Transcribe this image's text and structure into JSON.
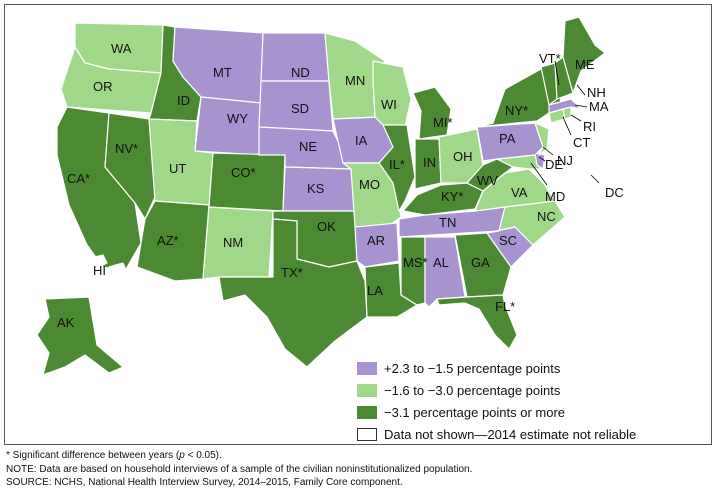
{
  "colors": {
    "purple": "#a693cf",
    "light_green": "#a0d88a",
    "dark_green": "#4b8a32",
    "border": "#ffffff",
    "blank": "#ffffff"
  },
  "states": [
    {
      "abbr": "WA",
      "label": "WA",
      "cat": "light_green"
    },
    {
      "abbr": "OR",
      "label": "OR",
      "cat": "light_green"
    },
    {
      "abbr": "CA",
      "label": "CA*",
      "cat": "dark_green"
    },
    {
      "abbr": "NV",
      "label": "NV*",
      "cat": "dark_green"
    },
    {
      "abbr": "ID",
      "label": "ID",
      "cat": "dark_green"
    },
    {
      "abbr": "MT",
      "label": "MT",
      "cat": "purple"
    },
    {
      "abbr": "WY",
      "label": "WY",
      "cat": "purple"
    },
    {
      "abbr": "UT",
      "label": "UT",
      "cat": "light_green"
    },
    {
      "abbr": "AZ",
      "label": "AZ*",
      "cat": "dark_green"
    },
    {
      "abbr": "CO",
      "label": "CO*",
      "cat": "dark_green"
    },
    {
      "abbr": "NM",
      "label": "NM",
      "cat": "light_green"
    },
    {
      "abbr": "ND",
      "label": "ND",
      "cat": "purple"
    },
    {
      "abbr": "SD",
      "label": "SD",
      "cat": "purple"
    },
    {
      "abbr": "NE",
      "label": "NE",
      "cat": "purple"
    },
    {
      "abbr": "KS",
      "label": "KS",
      "cat": "purple"
    },
    {
      "abbr": "OK",
      "label": "OK",
      "cat": "dark_green"
    },
    {
      "abbr": "TX",
      "label": "TX*",
      "cat": "dark_green"
    },
    {
      "abbr": "MN",
      "label": "MN",
      "cat": "light_green"
    },
    {
      "abbr": "IA",
      "label": "IA",
      "cat": "purple"
    },
    {
      "abbr": "MO",
      "label": "MO",
      "cat": "light_green"
    },
    {
      "abbr": "AR",
      "label": "AR",
      "cat": "purple"
    },
    {
      "abbr": "LA",
      "label": "LA",
      "cat": "dark_green"
    },
    {
      "abbr": "WI",
      "label": "WI",
      "cat": "light_green"
    },
    {
      "abbr": "IL",
      "label": "IL*",
      "cat": "dark_green"
    },
    {
      "abbr": "MI",
      "label": "MI*",
      "cat": "dark_green"
    },
    {
      "abbr": "IN",
      "label": "IN",
      "cat": "dark_green"
    },
    {
      "abbr": "OH",
      "label": "OH",
      "cat": "light_green"
    },
    {
      "abbr": "KY",
      "label": "KY*",
      "cat": "dark_green"
    },
    {
      "abbr": "TN",
      "label": "TN",
      "cat": "purple"
    },
    {
      "abbr": "MS",
      "label": "MS*",
      "cat": "dark_green"
    },
    {
      "abbr": "AL",
      "label": "AL",
      "cat": "purple"
    },
    {
      "abbr": "GA",
      "label": "GA",
      "cat": "dark_green"
    },
    {
      "abbr": "FL",
      "label": "FL*",
      "cat": "dark_green"
    },
    {
      "abbr": "SC",
      "label": "SC",
      "cat": "purple"
    },
    {
      "abbr": "NC",
      "label": "NC",
      "cat": "light_green"
    },
    {
      "abbr": "VA",
      "label": "VA",
      "cat": "light_green"
    },
    {
      "abbr": "WV",
      "label": "WV",
      "cat": "dark_green"
    },
    {
      "abbr": "MD",
      "label": "MD",
      "cat": "light_green"
    },
    {
      "abbr": "DE",
      "label": "DE",
      "cat": "purple"
    },
    {
      "abbr": "DC",
      "label": "DC",
      "cat": "blank"
    },
    {
      "abbr": "PA",
      "label": "PA",
      "cat": "purple"
    },
    {
      "abbr": "NJ",
      "label": "NJ",
      "cat": "light_green"
    },
    {
      "abbr": "NY",
      "label": "NY*",
      "cat": "dark_green"
    },
    {
      "abbr": "CT",
      "label": "CT",
      "cat": "light_green"
    },
    {
      "abbr": "RI",
      "label": "RI",
      "cat": "light_green"
    },
    {
      "abbr": "MA",
      "label": "MA",
      "cat": "purple"
    },
    {
      "abbr": "VT",
      "label": "VT*",
      "cat": "dark_green"
    },
    {
      "abbr": "NH",
      "label": "NH",
      "cat": "dark_green"
    },
    {
      "abbr": "ME",
      "label": "ME",
      "cat": "dark_green"
    },
    {
      "abbr": "AK",
      "label": "AK",
      "cat": "dark_green"
    },
    {
      "abbr": "HI",
      "label": "HI",
      "cat": "blank"
    }
  ],
  "legend": [
    {
      "label": "+2.3 to −1.5 percentage points",
      "cat": "purple"
    },
    {
      "label": "−1.6 to −3.0 percentage points",
      "cat": "light_green"
    },
    {
      "label": "−3.1 percentage points or more",
      "cat": "dark_green"
    },
    {
      "label": "Data not shown—2014 estimate not reliable",
      "cat": "blank"
    }
  ],
  "notes": {
    "significance_prefix": "* Significant difference between years (",
    "significance_p": "p",
    "significance_suffix": " < 0.05).",
    "note": "NOTE: Data are based on household interviews of a sample of the civilian noninstitutionalized population.",
    "source": "SOURCE: NCHS, National Health Interview Survey, 2014–2015, Family Core component."
  }
}
